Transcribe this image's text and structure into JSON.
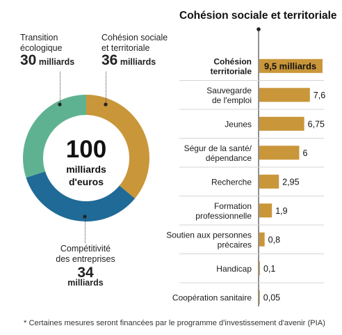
{
  "donut": {
    "center_value": "100",
    "center_unit_line1": "milliards",
    "center_unit_line2": "d'euros",
    "segments": [
      {
        "label_line1": "Cohésion sociale",
        "label_line2": "et territoriale",
        "value": 36,
        "value_text": "36",
        "unit": "milliards",
        "color": "#c9963a"
      },
      {
        "label_line1": "Compétitivité",
        "label_line2": "des entreprises",
        "value": 34,
        "value_text": "34",
        "unit": "milliards",
        "color": "#1f6a97"
      },
      {
        "label_line1": "Transition",
        "label_line2": "écologique",
        "value": 30,
        "value_text": "30",
        "unit": "milliards",
        "color": "#5fb291"
      }
    ]
  },
  "chart_data": {
    "type": "bar",
    "orientation": "horizontal",
    "title": "Cohésion sociale et territoriale",
    "categories": [
      [
        "Cohésion",
        "territoriale"
      ],
      [
        "Sauvegarde",
        "de l'emploi"
      ],
      [
        "Jeunes"
      ],
      [
        "Ségur de la santé/",
        "dépendance"
      ],
      [
        "Recherche"
      ],
      [
        "Formation",
        "professionnelle"
      ],
      [
        "Soutien aux personnes",
        "précaires"
      ],
      [
        "Handicap"
      ],
      [
        "Coopération sanitaire"
      ]
    ],
    "values": [
      9.5,
      7.6,
      6.75,
      6,
      2.95,
      1.9,
      0.8,
      0.1,
      0.05
    ],
    "value_labels": [
      "9,5 milliards",
      "7,6",
      "6,75",
      "6",
      "2,95",
      "1,9",
      "0,8",
      "0,1",
      "0,05"
    ],
    "highlight_index": 0,
    "bar_color": "#c9963a",
    "xlim": [
      0,
      9.5
    ]
  },
  "footnote": "* Certaines mesures seront financées par le programme d'investissement d'avenir (PIA)"
}
